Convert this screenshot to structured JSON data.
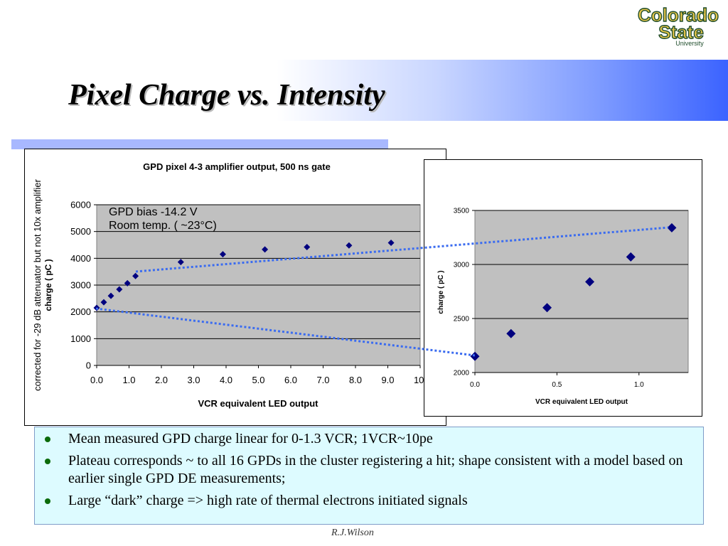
{
  "slide": {
    "title": "Pixel Charge vs. Intensity",
    "footer": "R.J.Wilson",
    "logo": {
      "line1": "Colorado",
      "line2": "State",
      "line3": "University"
    },
    "bullets": [
      "Mean measured GPD charge linear for 0-1.3 VCR; 1VCR~10pe",
      "Plateau corresponds ~ to all 16 GPDs in the cluster registering a hit; shape consistent with a model based on earlier single GPD DE measurements;",
      "Large “dark” charge => high rate of thermal electrons initiated signals"
    ],
    "colors": {
      "marker": "#00007f",
      "plot_bg": "#c0c0c0",
      "dotted_line": "#3b6cf0",
      "bullet_box": "#ddfbff",
      "bullet_dot": "#0b6b0b"
    }
  },
  "chart_data": [
    {
      "type": "scatter",
      "title": "GPD pixel 4-3 amplifier output, 500 ns gate",
      "xlabel": "VCR equivalent LED output",
      "ylabel": "charge ( pC )",
      "ylabel2": "corrected for -29 dB attenuator but not 10x amplifier",
      "annotation1": "GPD bias -14.2 V",
      "annotation2": "Room temp. ( ~23°C)",
      "x_ticks": [
        "0.0",
        "1.0",
        "2.0",
        "3.0",
        "4.0",
        "5.0",
        "6.0",
        "7.0",
        "8.0",
        "9.0",
        "10."
      ],
      "y_ticks": [
        "0",
        "1000",
        "2000",
        "3000",
        "4000",
        "5000",
        "6000"
      ],
      "xlim": [
        0,
        10
      ],
      "ylim": [
        0,
        6000
      ],
      "grid": true,
      "points": [
        {
          "x": 0.0,
          "y": 2150
        },
        {
          "x": 0.22,
          "y": 2360
        },
        {
          "x": 0.44,
          "y": 2600
        },
        {
          "x": 0.7,
          "y": 2840
        },
        {
          "x": 0.95,
          "y": 3070
        },
        {
          "x": 1.2,
          "y": 3340
        },
        {
          "x": 2.6,
          "y": 3860
        },
        {
          "x": 3.9,
          "y": 4150
        },
        {
          "x": 5.2,
          "y": 4330
        },
        {
          "x": 6.5,
          "y": 4420
        },
        {
          "x": 7.8,
          "y": 4480
        },
        {
          "x": 9.1,
          "y": 4580
        }
      ]
    },
    {
      "type": "scatter",
      "title": "",
      "xlabel": "VCR equivalent LED output",
      "ylabel": "charge ( pC )",
      "x_ticks": [
        "0.0",
        "0.5",
        "1.0"
      ],
      "y_ticks": [
        "2000",
        "2500",
        "3000",
        "3500"
      ],
      "xlim": [
        0,
        1.3
      ],
      "ylim": [
        2000,
        3500
      ],
      "grid": true,
      "points": [
        {
          "x": 0.0,
          "y": 2150
        },
        {
          "x": 0.22,
          "y": 2360
        },
        {
          "x": 0.44,
          "y": 2600
        },
        {
          "x": 0.7,
          "y": 2840
        },
        {
          "x": 0.95,
          "y": 3070
        },
        {
          "x": 1.2,
          "y": 3340
        }
      ]
    }
  ]
}
